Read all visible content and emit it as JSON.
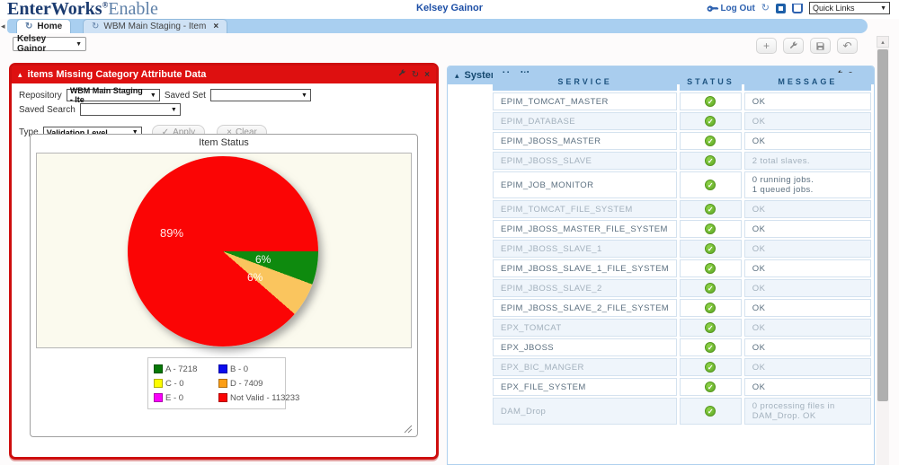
{
  "colors": {
    "accent_red": "#de1010",
    "header_blue": "#a9cdee",
    "status_green": "#6cbf2a"
  },
  "icons": {
    "refresh": "↻",
    "close": "×",
    "collapse": "▴",
    "dropdown": "▼",
    "check": "✓",
    "plus": "+",
    "undo": "↶",
    "scroll_up": "▴",
    "left_arrow": "◂"
  },
  "header": {
    "logo_primary": "EnterWorks",
    "logo_reg": "®",
    "logo_secondary": "Enable",
    "user_name": "Kelsey Gainor",
    "logout_label": "Log Out",
    "quick_links_label": "Quick Links"
  },
  "tabs": [
    {
      "label": "Home"
    },
    {
      "label": "WBM Main Staging - Item"
    }
  ],
  "toolbar": {
    "user_select_value": "Kelsey Gainor"
  },
  "left_panel": {
    "title": "items Missing Category Attribute Data",
    "form": {
      "repository_label": "Repository",
      "repository_value": "WBM Main Staging - Ite",
      "saved_set_label": "Saved Set",
      "saved_set_value": "",
      "saved_search_label": "Saved Search",
      "saved_search_value": "",
      "type_label": "Type",
      "type_value": "Validation Level",
      "apply_label": "Apply",
      "clear_label": "Clear"
    }
  },
  "chart_data": {
    "type": "pie",
    "title": "Item Status",
    "slices": [
      {
        "label": "A",
        "count": 7218,
        "pct": "6%",
        "color": "#0e8a0e"
      },
      {
        "label": "D",
        "count": 7409,
        "pct": "6%",
        "color": "#fac55e"
      },
      {
        "label": "Not Valid",
        "count": 113233,
        "pct": "89%",
        "color": "#fb0505"
      }
    ],
    "start_angle_deg": 90,
    "legend_position": "bottom",
    "legend": [
      {
        "label": "A - 7218",
        "color": "#067806"
      },
      {
        "label": "B - 0",
        "color": "#0b0bee"
      },
      {
        "label": "C - 0",
        "color": "#fcfc00"
      },
      {
        "label": "D - 7409",
        "color": "#fc9e15"
      },
      {
        "label": "E - 0",
        "color": "#fa00fa"
      },
      {
        "label": "Not Valid - 113233",
        "color": "#fb0505"
      }
    ]
  },
  "system_health": {
    "title": "System Health",
    "columns": [
      "SERVICE",
      "STATUS",
      "MESSAGE"
    ],
    "rows": [
      {
        "service": "EPIM_TOMCAT_MASTER",
        "status": "ok",
        "message": "OK"
      },
      {
        "service": "EPIM_DATABASE",
        "status": "ok",
        "message": "OK"
      },
      {
        "service": "EPIM_JBOSS_MASTER",
        "status": "ok",
        "message": "OK"
      },
      {
        "service": "EPIM_JBOSS_SLAVE",
        "status": "ok",
        "message": "2 total slaves."
      },
      {
        "service": "EPIM_JOB_MONITOR",
        "status": "ok",
        "message": "0 running jobs.\n1 queued jobs."
      },
      {
        "service": "EPIM_TOMCAT_FILE_SYSTEM",
        "status": "ok",
        "message": "OK"
      },
      {
        "service": "EPIM_JBOSS_MASTER_FILE_SYSTEM",
        "status": "ok",
        "message": "OK"
      },
      {
        "service": "EPIM_JBOSS_SLAVE_1",
        "status": "ok",
        "message": "OK"
      },
      {
        "service": "EPIM_JBOSS_SLAVE_1_FILE_SYSTEM",
        "status": "ok",
        "message": "OK"
      },
      {
        "service": "EPIM_JBOSS_SLAVE_2",
        "status": "ok",
        "message": "OK"
      },
      {
        "service": "EPIM_JBOSS_SLAVE_2_FILE_SYSTEM",
        "status": "ok",
        "message": "OK"
      },
      {
        "service": "EPX_TOMCAT",
        "status": "ok",
        "message": "OK"
      },
      {
        "service": "EPX_JBOSS",
        "status": "ok",
        "message": "OK"
      },
      {
        "service": "EPX_BIC_MANGER",
        "status": "ok",
        "message": "OK"
      },
      {
        "service": "EPX_FILE_SYSTEM",
        "status": "ok",
        "message": "OK"
      },
      {
        "service": "DAM_Drop",
        "status": "ok",
        "message": "0 processing files in DAM_Drop. OK"
      }
    ]
  }
}
